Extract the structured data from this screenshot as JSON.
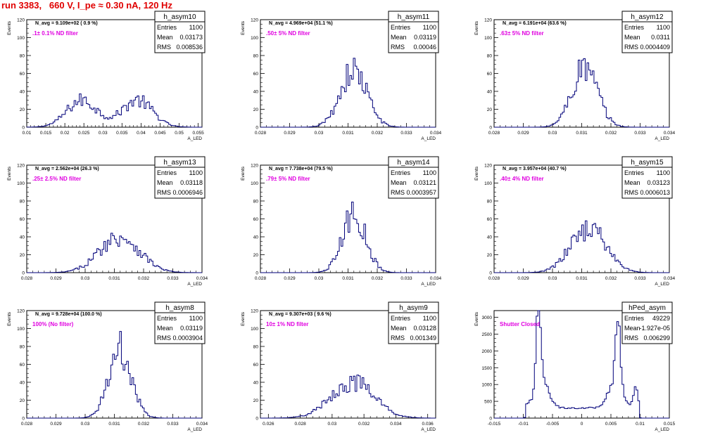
{
  "title": "run 3383,   660 V, I_pe ≈ 0.30 nA, 120 Hz",
  "colors": {
    "title": "#e00000",
    "histogram": "#00007a",
    "filter_note": "#e000e0",
    "frame": "#000000"
  },
  "chart_data": [
    {
      "type": "histogram",
      "name": "h_asym10",
      "xlabel": "A_LED",
      "ylabel": "Events",
      "navg": "N_avg = 9.109e+02 ( 0.9 %)",
      "note": ".1± 0.1% ND filter",
      "stats": [
        [
          "Entries",
          "1100"
        ],
        [
          "Mean",
          "0.03173"
        ],
        [
          "RMS",
          "0.008536"
        ]
      ],
      "xlim": [
        0.01,
        0.056
      ],
      "ylim": [
        0,
        120
      ],
      "xticks": [
        0.01,
        0.015,
        0.02,
        0.025,
        0.03,
        0.035,
        0.04,
        0.045,
        0.05,
        0.055
      ],
      "xtick_labels": [
        "0.01",
        "0.015",
        "0.02",
        "0.025",
        "0.03",
        "0.035",
        "0.04",
        "0.045",
        "0.05",
        "0.055"
      ],
      "yticks": [
        0,
        20,
        40,
        60,
        80,
        100,
        120
      ],
      "mode": "bimodal",
      "peaks": [
        0.0245,
        0.039
      ],
      "sigma": 0.004,
      "peak_value": 40
    },
    {
      "type": "histogram",
      "name": "h_asym11",
      "xlabel": "A_LED",
      "ylabel": "Events",
      "navg": "N_avg = 4.969e+04 (51.1 %)",
      "note": ".50± 5% ND filter",
      "stats": [
        [
          "Entries",
          "1100"
        ],
        [
          "Mean",
          "0.03119"
        ],
        [
          "RMS",
          "0.00046"
        ]
      ],
      "xlim": [
        0.028,
        0.034
      ],
      "ylim": [
        0,
        120
      ],
      "xticks": [
        0.028,
        0.029,
        0.03,
        0.031,
        0.032,
        0.033,
        0.034
      ],
      "xtick_labels": [
        "0.028",
        "0.029",
        "0.03",
        "0.031",
        "0.032",
        "0.033",
        "0.034"
      ],
      "yticks": [
        0,
        20,
        40,
        60,
        80,
        100,
        120
      ],
      "mode": "gauss",
      "mean": 0.03119,
      "sigma": 0.00046,
      "peak_value": 63
    },
    {
      "type": "histogram",
      "name": "h_asym12",
      "xlabel": "A_LED",
      "ylabel": "Events",
      "navg": "N_avg = 6.191e+04 (63.6 %)",
      "note": ".63± 5% ND filter",
      "stats": [
        [
          "Entries",
          "1100"
        ],
        [
          "Mean",
          "0.0311"
        ],
        [
          "RMS",
          "0.0004409"
        ]
      ],
      "xlim": [
        0.028,
        0.034
      ],
      "ylim": [
        0,
        120
      ],
      "xticks": [
        0.028,
        0.029,
        0.03,
        0.031,
        0.032,
        0.033,
        0.034
      ],
      "xtick_labels": [
        "0.028",
        "0.029",
        "0.03",
        "0.031",
        "0.032",
        "0.033",
        "0.034"
      ],
      "yticks": [
        0,
        20,
        40,
        60,
        80,
        100,
        120
      ],
      "mode": "gauss",
      "mean": 0.0311,
      "sigma": 0.00044,
      "peak_value": 66
    },
    {
      "type": "histogram",
      "name": "h_asym13",
      "xlabel": "A_LED",
      "ylabel": "Events",
      "navg": "N_avg = 2.562e+04 (26.3 %)",
      "note": ".25± 2.5% ND filter",
      "stats": [
        [
          "Entries",
          "1100"
        ],
        [
          "Mean",
          "0.03118"
        ],
        [
          "RMS",
          "0.0006946"
        ]
      ],
      "xlim": [
        0.028,
        0.034
      ],
      "ylim": [
        0,
        120
      ],
      "xticks": [
        0.028,
        0.029,
        0.03,
        0.031,
        0.032,
        0.033,
        0.034
      ],
      "xtick_labels": [
        "0.028",
        "0.029",
        "0.03",
        "0.031",
        "0.032",
        "0.033",
        "0.034"
      ],
      "yticks": [
        0,
        20,
        40,
        60,
        80,
        100,
        120
      ],
      "mode": "gauss",
      "mean": 0.03118,
      "sigma": 0.00069,
      "peak_value": 40
    },
    {
      "type": "histogram",
      "name": "h_asym14",
      "xlabel": "A_LED",
      "ylabel": "Events",
      "navg": "N_avg = 7.738e+04 (79.5 %)",
      "note": ".79± 5% ND filter",
      "stats": [
        [
          "Entries",
          "1100"
        ],
        [
          "Mean",
          "0.03121"
        ],
        [
          "RMS",
          "0.0003957"
        ]
      ],
      "xlim": [
        0.028,
        0.034
      ],
      "ylim": [
        0,
        120
      ],
      "xticks": [
        0.028,
        0.029,
        0.03,
        0.031,
        0.032,
        0.033,
        0.034
      ],
      "xtick_labels": [
        "0.028",
        "0.029",
        "0.03",
        "0.031",
        "0.032",
        "0.033",
        "0.034"
      ],
      "yticks": [
        0,
        20,
        40,
        60,
        80,
        100,
        120
      ],
      "mode": "gauss",
      "mean": 0.03121,
      "sigma": 0.0004,
      "peak_value": 65
    },
    {
      "type": "histogram",
      "name": "h_asym15",
      "xlabel": "A_LED",
      "ylabel": "Events",
      "navg": "N_avg = 3.957e+04 (40.7 %)",
      "note": ".40± 4% ND filter",
      "stats": [
        [
          "Entries",
          "1100"
        ],
        [
          "Mean",
          "0.03123"
        ],
        [
          "RMS",
          "0.0006013"
        ]
      ],
      "xlim": [
        0.028,
        0.034
      ],
      "ylim": [
        0,
        120
      ],
      "xticks": [
        0.028,
        0.029,
        0.03,
        0.031,
        0.032,
        0.033,
        0.034
      ],
      "xtick_labels": [
        "0.028",
        "0.029",
        "0.03",
        "0.031",
        "0.032",
        "0.033",
        "0.034"
      ],
      "yticks": [
        0,
        20,
        40,
        60,
        80,
        100,
        120
      ],
      "mode": "gauss",
      "mean": 0.03123,
      "sigma": 0.0006,
      "peak_value": 50
    },
    {
      "type": "histogram",
      "name": "h_asym8",
      "xlabel": "A_LED",
      "ylabel": "Events",
      "navg": "N_avg = 9.728e+04 (100.0 %)",
      "note": "100% (No filter)",
      "stats": [
        [
          "Entries",
          "1100"
        ],
        [
          "Mean",
          "0.03119"
        ],
        [
          "RMS",
          "0.0003904"
        ]
      ],
      "xlim": [
        0.028,
        0.034
      ],
      "ylim": [
        0,
        120
      ],
      "xticks": [
        0.028,
        0.029,
        0.03,
        0.031,
        0.032,
        0.033,
        0.034
      ],
      "xtick_labels": [
        "0.028",
        "0.029",
        "0.03",
        "0.031",
        "0.032",
        "0.033",
        "0.034"
      ],
      "yticks": [
        0,
        20,
        40,
        60,
        80,
        100,
        120
      ],
      "mode": "gauss",
      "mean": 0.03119,
      "sigma": 0.00039,
      "peak_value": 76
    },
    {
      "type": "histogram",
      "name": "h_asym9",
      "xlabel": "A_LED",
      "ylabel": "Events",
      "navg": "N_avg = 9.307e+03 ( 9.6 %)",
      "note": "10± 1% ND filter",
      "stats": [
        [
          "Entries",
          "1100"
        ],
        [
          "Mean",
          "0.03128"
        ],
        [
          "RMS",
          "0.001349"
        ]
      ],
      "xlim": [
        0.0255,
        0.0365
      ],
      "ylim": [
        0,
        120
      ],
      "xticks": [
        0.026,
        0.028,
        0.03,
        0.032,
        0.034,
        0.036
      ],
      "xtick_labels": [
        "0.026",
        "0.028",
        "0.03",
        "0.032",
        "0.034",
        "0.036"
      ],
      "yticks": [
        0,
        20,
        40,
        60,
        80,
        100,
        120
      ],
      "mode": "gauss",
      "mean": 0.03128,
      "sigma": 0.00135,
      "peak_value": 40
    },
    {
      "type": "histogram",
      "name": "hPed_asym",
      "xlabel": "A_LED",
      "ylabel": "Events",
      "navg": "",
      "note": "Shutter Closed",
      "stats": [
        [
          "Entries",
          "49229"
        ],
        [
          "Mean",
          "-1.927e-05"
        ],
        [
          "RMS",
          "0.006299"
        ]
      ],
      "xlim": [
        -0.015,
        0.015
      ],
      "ylim": [
        0,
        3200
      ],
      "xticks": [
        -0.015,
        -0.01,
        -0.005,
        0,
        0.005,
        0.01,
        0.015
      ],
      "xtick_labels": [
        "-0.015",
        "-0.01",
        "-0.005",
        "0",
        "0.005",
        "0.01",
        "0.015"
      ],
      "yticks": [
        0,
        500,
        1000,
        1500,
        2000,
        2500,
        3000
      ],
      "mode": "pedestal"
    }
  ]
}
